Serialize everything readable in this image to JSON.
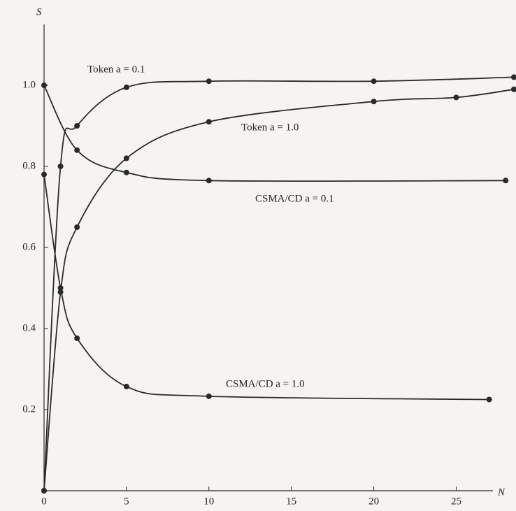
{
  "chart_data": {
    "type": "line",
    "y_label": "S",
    "x_label": "N",
    "xlim": [
      0,
      28.5
    ],
    "ylim": [
      0,
      1.15
    ],
    "xticks": [
      0,
      5,
      10,
      15,
      20,
      25
    ],
    "yticks": [
      0.2,
      0.4,
      0.6,
      0.8,
      {
        "value": 1,
        "label": "1.0"
      }
    ],
    "color": "#2a2a2a",
    "series": [
      {
        "name": "Token a = 0.1",
        "x": [
          0,
          1,
          2,
          5,
          10,
          20,
          28.5
        ],
        "values": [
          0,
          0.8,
          0.9,
          0.995,
          1.01,
          1.01,
          1.02
        ]
      },
      {
        "name": "Token a = 1.0",
        "x": [
          0,
          1,
          2,
          5,
          10,
          20,
          25,
          28.5
        ],
        "values": [
          0,
          0.49,
          0.65,
          0.82,
          0.91,
          0.96,
          0.97,
          0.99
        ]
      },
      {
        "name": "CSMA/CD a = 0.1",
        "x": [
          0,
          2,
          5,
          10,
          28
        ],
        "values": [
          1.0,
          0.84,
          0.785,
          0.765,
          0.765
        ]
      },
      {
        "name": "CSMA/CD a = 1.0",
        "x": [
          0,
          1,
          2,
          5,
          10,
          27
        ],
        "values": [
          0.78,
          0.5,
          0.376,
          0.257,
          0.233,
          0.225
        ]
      }
    ]
  }
}
